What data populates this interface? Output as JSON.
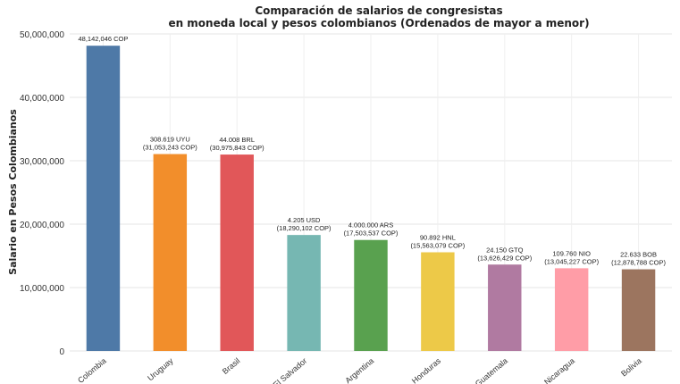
{
  "chart_data": {
    "type": "bar",
    "title": "Comparación de salarios de congresistas",
    "subtitle": "en moneda local y pesos colombianos (Ordenados de mayor a menor)",
    "xlabel": "",
    "ylabel": "Salario en Pesos Colombianos",
    "ylim": [
      0,
      50000000
    ],
    "yticks": [
      0,
      10000000,
      20000000,
      30000000,
      40000000,
      50000000
    ],
    "ytick_labels": [
      "0",
      "10,000,000",
      "20,000,000",
      "30,000,000",
      "40,000,000",
      "50,000,000"
    ],
    "grid": true,
    "categories": [
      "Colombia",
      "Uruguay",
      "Brasil",
      "El Salvador",
      "Argentina",
      "Honduras",
      "Guatemala",
      "Nicaragua",
      "Bolivia"
    ],
    "values": [
      48142046,
      31053243,
      30975843,
      18290102,
      17503537,
      15563079,
      13626429,
      13045227,
      12878788
    ],
    "bar_colors": [
      "#4e79a7",
      "#f28e2b",
      "#e15759",
      "#76b7b2",
      "#59a14f",
      "#edc948",
      "#b07aa1",
      "#ff9da7",
      "#9c755f"
    ],
    "data_labels": [
      [
        "48,142,046 COP"
      ],
      [
        "308.619 UYU",
        "(31,053,243 COP)"
      ],
      [
        "44.008 BRL",
        "(30,975,843 COP)"
      ],
      [
        "4.205 USD",
        "(18,290,102 COP)"
      ],
      [
        "4.000.000 ARS",
        "(17,503,537 COP)"
      ],
      [
        "90.892 HNL",
        "(15,563,079 COP)"
      ],
      [
        "24.150 GTQ",
        "(13,626,429 COP)"
      ],
      [
        "109.760 NIO",
        "(13,045,227 COP)"
      ],
      [
        "22.633 BOB",
        "(12,878,788 COP)"
      ]
    ]
  }
}
